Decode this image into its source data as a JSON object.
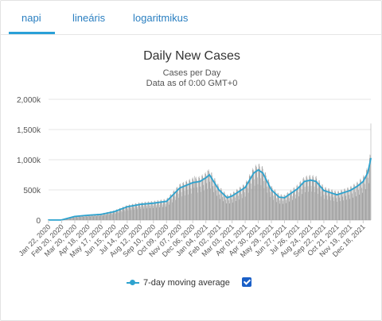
{
  "tabs": [
    {
      "label": "napi",
      "active": true
    },
    {
      "label": "lineáris",
      "active": false
    },
    {
      "label": "logaritmikus",
      "active": false
    }
  ],
  "legend": {
    "label": "7-day moving average",
    "checked": true
  },
  "chart_data": {
    "type": "bar",
    "title": "Daily New Cases",
    "subtitle": "Cases per Day",
    "subtitle2": "Data as of 0:00 GMT+0",
    "xlabel": "",
    "ylabel": "",
    "ylim": [
      0,
      2000000
    ],
    "yticks": [
      0,
      500000,
      1000000,
      1500000,
      2000000
    ],
    "ytick_labels": [
      "0",
      "500k",
      "1,000k",
      "1,500k",
      "2,000k"
    ],
    "grid": true,
    "x_tick_labels": [
      "Jan 22, 2020",
      "Feb 20, 2020",
      "Mar 20, 2020",
      "Apr 18, 2020",
      "May 17, 2020",
      "Jun 15, 2020",
      "Jul 14, 2020",
      "Aug 12, 2020",
      "Sep 10, 2020",
      "Oct 09, 2020",
      "Nov 07, 2020",
      "Dec 06, 2020",
      "Jan 04, 2021",
      "Feb 02, 2021",
      "Mar 03, 2021",
      "Apr 01, 2021",
      "Apr 30, 2021",
      "May 29, 2021",
      "Jun 27, 2021",
      "Jul 26, 2021",
      "Aug 24, 2021",
      "Sep 22, 2021",
      "Oct 21, 2021",
      "Nov 19, 2021",
      "Dec 18, 2021"
    ],
    "x_start": "Jan 22, 2020",
    "x_end": "Jan 04, 2022",
    "bar_color": "#9e9e9e",
    "line_color": "#2ea3cf",
    "series": [
      {
        "name": "7-day moving average",
        "dates": [
          "Jan 22, 2020",
          "Feb 20, 2020",
          "Mar 20, 2020",
          "Apr 18, 2020",
          "May 17, 2020",
          "Jun 15, 2020",
          "Jul 14, 2020",
          "Aug 12, 2020",
          "Sep 10, 2020",
          "Oct 09, 2020",
          "Nov 07, 2020",
          "Dec 06, 2020",
          "Dec 22, 2020",
          "Jan 04, 2021",
          "Jan 12, 2021",
          "Feb 02, 2021",
          "Feb 20, 2021",
          "Mar 03, 2021",
          "Apr 01, 2021",
          "Apr 20, 2021",
          "Apr 30, 2021",
          "May 10, 2021",
          "May 29, 2021",
          "Jun 15, 2021",
          "Jun 27, 2021",
          "Jul 26, 2021",
          "Aug 10, 2021",
          "Aug 24, 2021",
          "Sep 05, 2021",
          "Sep 22, 2021",
          "Oct 21, 2021",
          "Nov 19, 2021",
          "Dec 05, 2021",
          "Dec 18, 2021",
          "Dec 28, 2021",
          "Jan 04, 2022"
        ],
        "values": [
          1000,
          3000,
          60000,
          80000,
          95000,
          140000,
          220000,
          260000,
          280000,
          310000,
          530000,
          620000,
          640000,
          700000,
          750000,
          500000,
          370000,
          400000,
          540000,
          780000,
          830000,
          780000,
          500000,
          380000,
          370000,
          520000,
          640000,
          660000,
          640000,
          490000,
          420000,
          490000,
          560000,
          640000,
          780000,
          1020000
        ]
      },
      {
        "name": "Daily New Cases",
        "dates": [
          "Dec 10, 2020",
          "Jan 08, 2021",
          "Jan 04, 2022"
        ],
        "values": [
          730000,
          820000,
          1600000
        ]
      }
    ]
  }
}
